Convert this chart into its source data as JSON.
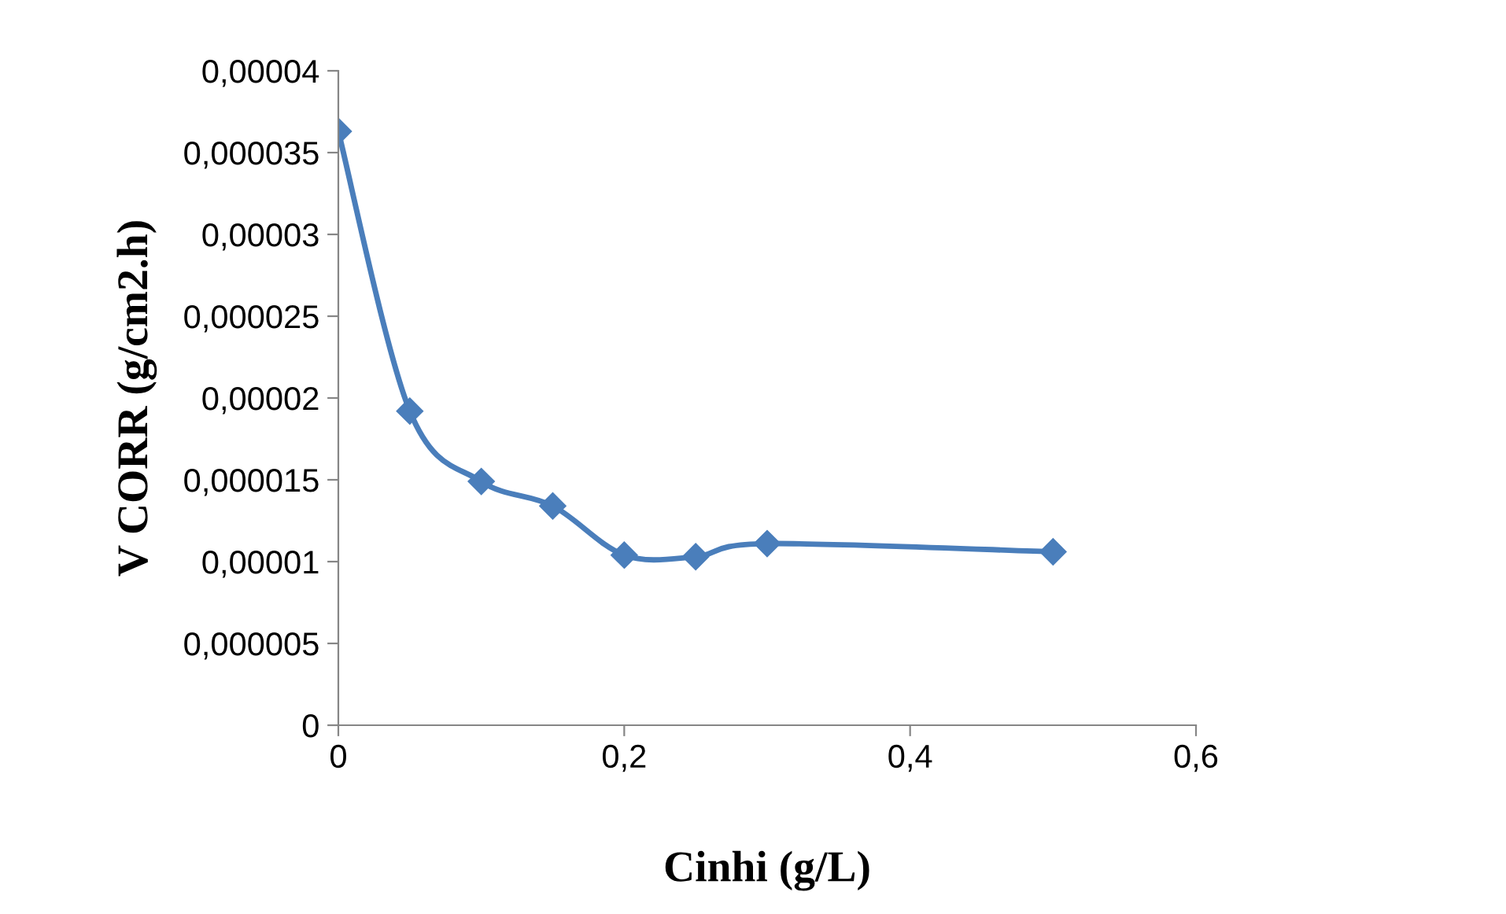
{
  "chart_data": {
    "type": "line",
    "xlabel": "Cinhi (g/L)",
    "ylabel": "V CORR (g/cm2.h)",
    "x": [
      0,
      0.05,
      0.1,
      0.15,
      0.2,
      0.25,
      0.3,
      0.5
    ],
    "series": [
      {
        "color": "#4a7ebb",
        "values": [
          3.63e-05,
          1.92e-05,
          1.49e-05,
          1.34e-05,
          1.04e-05,
          1.03e-05,
          1.11e-05,
          1.06e-05
        ]
      }
    ],
    "xlim": [
      0,
      0.6
    ],
    "xticks": [
      0,
      {
        "value": 0.2,
        "label": "0,2"
      },
      {
        "value": 0.4,
        "label": "0,4"
      },
      {
        "value": 0.6,
        "label": "0,6"
      }
    ],
    "ylim": [
      0,
      4e-05
    ],
    "yticks": [
      0,
      {
        "value": 5e-06,
        "label": "0,000005"
      },
      {
        "value": 1e-05,
        "label": "0,00001"
      },
      {
        "value": 1.5e-05,
        "label": "0,000015"
      },
      {
        "value": 2e-05,
        "label": "0,00002"
      },
      {
        "value": 2.5e-05,
        "label": "0,000025"
      },
      {
        "value": 3e-05,
        "label": "0,00003"
      },
      {
        "value": 3.5e-05,
        "label": "0,000035"
      },
      {
        "value": 4e-05,
        "label": "0,00004"
      }
    ],
    "grid": false,
    "legend": false,
    "marker": "diamond",
    "line_style": "solid"
  }
}
